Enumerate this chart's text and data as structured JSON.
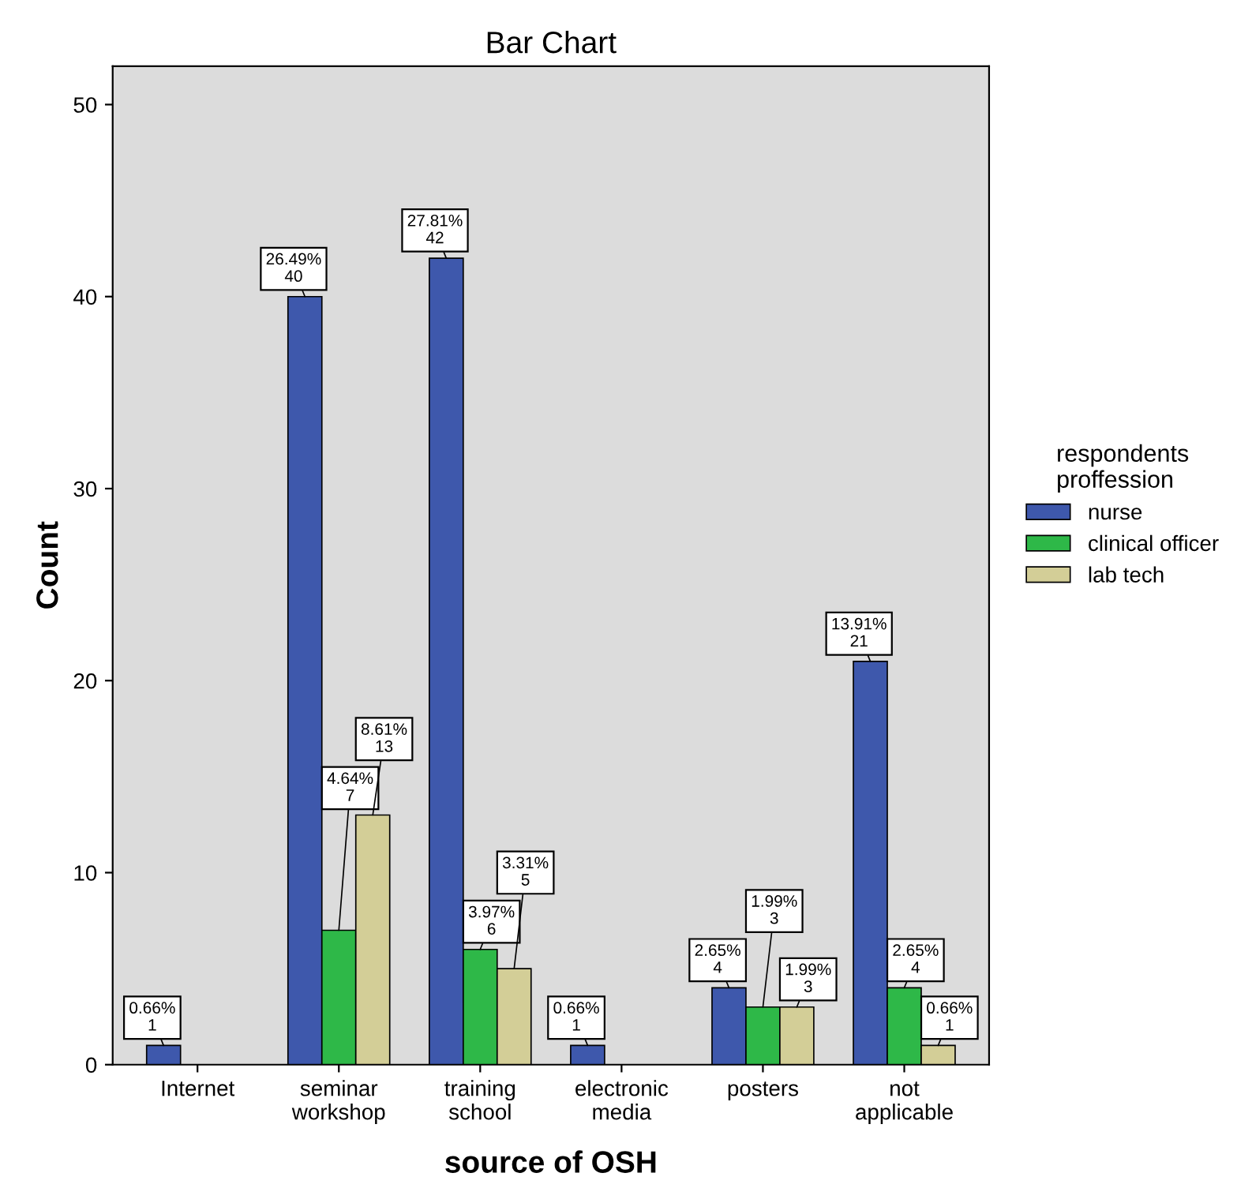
{
  "chart_data": {
    "type": "bar",
    "title": "Bar Chart",
    "xlabel": "source of OSH",
    "ylabel": "Count",
    "legend_title": "respondents\nproffession",
    "categories": [
      "Internet",
      "seminar\nworkshop",
      "training\nschool",
      "electronic\nmedia",
      "posters",
      "not\napplicable"
    ],
    "series": [
      {
        "name": "nurse",
        "color": "#3e58ac",
        "values": [
          1,
          40,
          42,
          1,
          4,
          21
        ],
        "value_labels": [
          "0.66%\n1",
          "26.49%\n40",
          "27.81%\n42",
          "0.66%\n1",
          "2.65%\n4",
          "13.91%\n21"
        ]
      },
      {
        "name": "clinical officer",
        "color": "#2eb848",
        "values": [
          null,
          7,
          6,
          null,
          3,
          4
        ],
        "value_labels": [
          null,
          "4.64%\n7",
          "3.97%\n6",
          null,
          "1.99%\n3",
          "2.65%\n4"
        ]
      },
      {
        "name": "lab tech",
        "color": "#d3ce97",
        "values": [
          null,
          13,
          5,
          null,
          3,
          1
        ],
        "value_labels": [
          null,
          "8.61%\n13",
          "3.31%\n5",
          null,
          "1.99%\n3",
          "0.66%\n1"
        ]
      }
    ],
    "ylim": [
      0,
      52
    ],
    "yticks": [
      0,
      10,
      20,
      30,
      40,
      50
    ],
    "grid": false,
    "legend": "right"
  }
}
